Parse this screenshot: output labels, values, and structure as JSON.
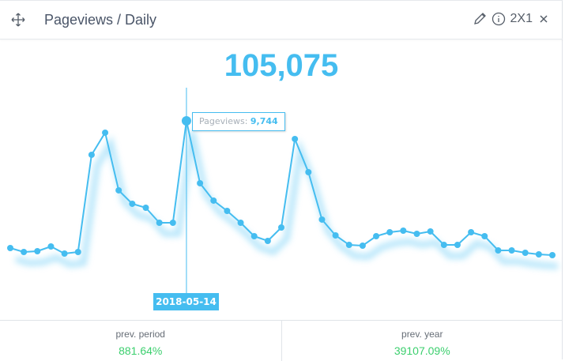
{
  "header": {
    "title": "Pageviews / Daily",
    "size_label": "2X1"
  },
  "total": "105,075",
  "tooltip": {
    "label": "Pageviews:",
    "value": "9,744",
    "date": "2018-05-14"
  },
  "footer": [
    {
      "label": "prev. period",
      "value": "881.64%"
    },
    {
      "label": "prev. year",
      "value": "39107.09%"
    }
  ],
  "colors": {
    "accent": "#45bdf0",
    "positive": "#3ccf6e"
  },
  "chart_data": {
    "type": "line",
    "title": "Pageviews / Daily",
    "series": [
      {
        "name": "Pageviews",
        "values": [
          780,
          501,
          557,
          891,
          390,
          501,
          7352,
          8912,
          4846,
          3899,
          3620,
          2562,
          2562,
          9744,
          5347,
          4122,
          3397,
          2562,
          1615,
          1281,
          2228,
          8466,
          6127,
          2785,
          1671,
          1003,
          947,
          1615,
          1894,
          2005,
          1782,
          1950,
          1003,
          1003,
          1894,
          1615,
          613,
          613,
          446,
          334,
          279
        ]
      }
    ],
    "highlight_index": 13,
    "ylim": [
      0,
      9744
    ],
    "grid": false,
    "legend": "none"
  }
}
